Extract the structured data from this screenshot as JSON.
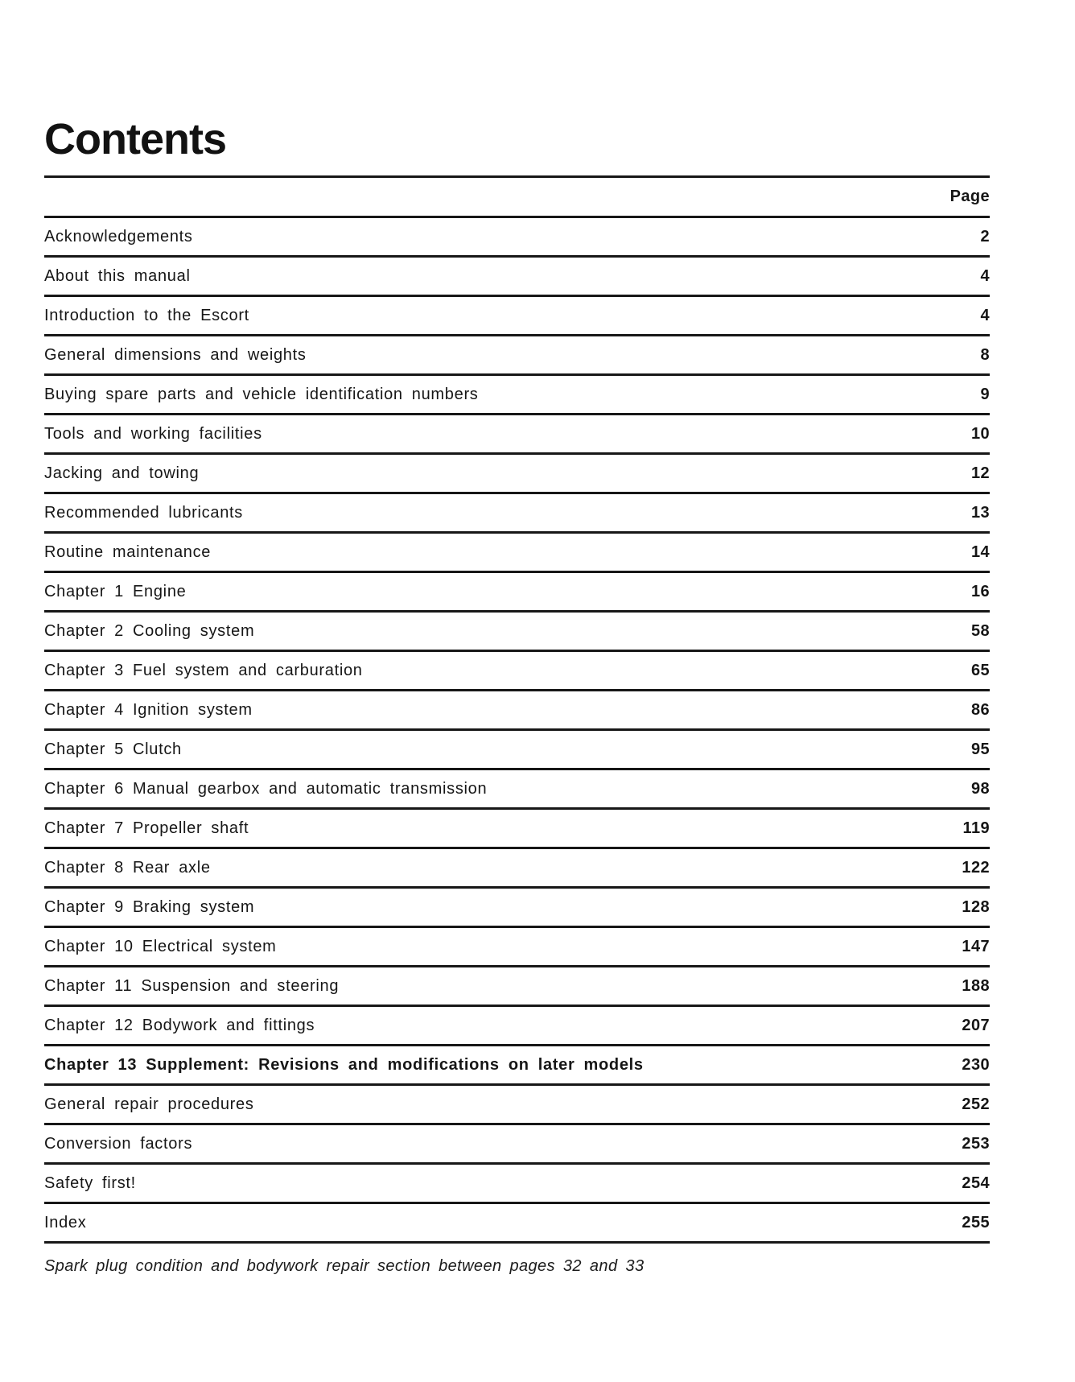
{
  "page": {
    "title": "Contents",
    "page_column_label": "Page",
    "footnote": "Spark plug condition and bodywork repair section between pages 32 and 33"
  },
  "toc": {
    "entries": [
      {
        "label": "Acknowledgements",
        "page": "2",
        "emphasis": false
      },
      {
        "label": "About this manual",
        "page": "4",
        "emphasis": false
      },
      {
        "label": "Introduction to the Escort",
        "page": "4",
        "emphasis": false
      },
      {
        "label": "General dimensions and weights",
        "page": "8",
        "emphasis": false
      },
      {
        "label": "Buying spare parts and vehicle identification numbers",
        "page": "9",
        "emphasis": false
      },
      {
        "label": "Tools and working facilities",
        "page": "10",
        "emphasis": false
      },
      {
        "label": "Jacking and towing",
        "page": "12",
        "emphasis": false
      },
      {
        "label": "Recommended lubricants",
        "page": "13",
        "emphasis": false
      },
      {
        "label": "Routine maintenance",
        "page": "14",
        "emphasis": false
      },
      {
        "label": "Chapter 1 Engine",
        "page": "16",
        "emphasis": false
      },
      {
        "label": "Chapter 2 Cooling system",
        "page": "58",
        "emphasis": false
      },
      {
        "label": "Chapter 3 Fuel system and carburation",
        "page": "65",
        "emphasis": false
      },
      {
        "label": "Chapter 4 Ignition system",
        "page": "86",
        "emphasis": false
      },
      {
        "label": "Chapter 5 Clutch",
        "page": "95",
        "emphasis": false
      },
      {
        "label": "Chapter 6 Manual gearbox and automatic transmission",
        "page": "98",
        "emphasis": false
      },
      {
        "label": "Chapter 7 Propeller shaft",
        "page": "119",
        "emphasis": false
      },
      {
        "label": "Chapter 8 Rear axle",
        "page": "122",
        "emphasis": false
      },
      {
        "label": "Chapter 9 Braking system",
        "page": "128",
        "emphasis": false
      },
      {
        "label": "Chapter 10 Electrical system",
        "page": "147",
        "emphasis": false
      },
      {
        "label": "Chapter 11 Suspension and steering",
        "page": "188",
        "emphasis": false
      },
      {
        "label": "Chapter 12 Bodywork and fittings",
        "page": "207",
        "emphasis": false
      },
      {
        "label": "Chapter 13 Supplement: Revisions and modifications on later models",
        "page": "230",
        "emphasis": true
      },
      {
        "label": "General repair procedures",
        "page": "252",
        "emphasis": false
      },
      {
        "label": "Conversion factors",
        "page": "253",
        "emphasis": false
      },
      {
        "label": "Safety first!",
        "page": "254",
        "emphasis": false
      },
      {
        "label": "Index",
        "page": "255",
        "emphasis": false
      }
    ]
  }
}
